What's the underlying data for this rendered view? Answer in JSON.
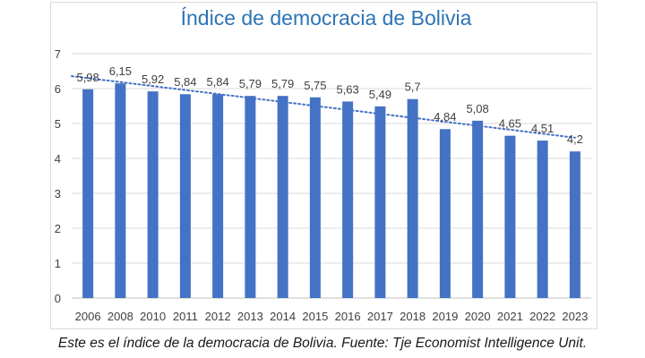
{
  "chart_data": {
    "type": "bar",
    "title": "Índice de democracia de Bolivia",
    "xlabel": "",
    "ylabel": "",
    "ylim": [
      0,
      7
    ],
    "yticks": [
      "0",
      "1",
      "2",
      "3",
      "4",
      "5",
      "6",
      "7"
    ],
    "categories": [
      "2006",
      "2008",
      "2010",
      "2011",
      "2012",
      "2013",
      "2014",
      "2015",
      "2016",
      "2017",
      "2018",
      "2019",
      "2020",
      "2021",
      "2022",
      "2023"
    ],
    "values": [
      5.98,
      6.15,
      5.92,
      5.84,
      5.84,
      5.79,
      5.79,
      5.75,
      5.63,
      5.49,
      5.7,
      4.84,
      5.08,
      4.65,
      4.51,
      4.2
    ],
    "data_labels": [
      "5,98",
      "6,15",
      "5,92",
      "5,84",
      "5,84",
      "5,79",
      "5,79",
      "5,75",
      "5,63",
      "5,49",
      "5,7",
      "4,84",
      "5,08",
      "4,65",
      "4,51",
      "4,2"
    ],
    "trendline": "linear dotted",
    "grid": true,
    "legend": "none",
    "bar_color": "#4472c4",
    "trend_color": "#4472c4",
    "title_color": "#2e74b5"
  },
  "caption": "Este es el índice de la democracia de Bolivia. Fuente: Tje Economist Intelligence Unit."
}
